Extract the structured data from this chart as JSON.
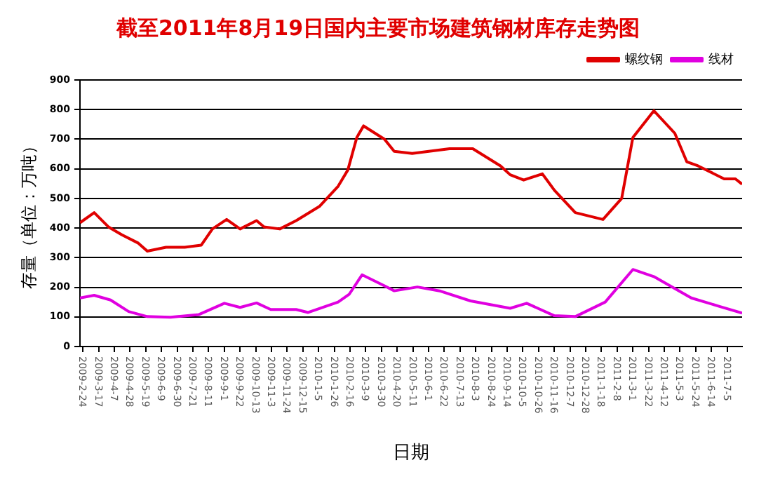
{
  "chart_data": {
    "type": "line",
    "title": "截至2011年8月19日国内主要市场建筑钢材库存走势图",
    "xlabel": "日期",
    "ylabel": "存量（单位：万吨）",
    "series": [
      {
        "name": "螺纹钢",
        "color": "#e00000",
        "x": [
          "2009-02-20",
          "2009-03-11",
          "2009-03-30",
          "2009-04-17",
          "2009-05-09",
          "2009-05-21",
          "2009-06-15",
          "2009-07-10",
          "2009-08-01",
          "2009-08-16",
          "2009-09-04",
          "2009-09-22",
          "2009-10-14",
          "2009-10-24",
          "2009-11-14",
          "2009-12-06",
          "2010-01-06",
          "2010-01-31",
          "2010-02-13",
          "2010-02-25",
          "2010-03-06",
          "2010-04-03",
          "2010-04-16",
          "2010-05-10",
          "2010-06-29",
          "2010-07-30",
          "2010-09-05",
          "2010-09-18",
          "2010-10-06",
          "2010-10-31",
          "2010-11-16",
          "2010-12-14",
          "2011-01-20",
          "2011-02-14",
          "2011-03-01",
          "2011-03-29",
          "2011-04-26",
          "2011-05-12",
          "2011-05-27",
          "2011-07-01",
          "2011-07-16",
          "2011-07-25"
        ],
        "values": [
          418,
          452,
          404,
          377,
          349,
          322,
          335,
          335,
          342,
          397,
          429,
          397,
          425,
          404,
          397,
          425,
          473,
          541,
          596,
          706,
          745,
          700,
          659,
          652,
          668,
          668,
          610,
          580,
          562,
          583,
          528,
          452,
          429,
          500,
          706,
          796,
          720,
          624,
          610,
          566,
          566,
          548
        ]
      },
      {
        "name": "线材",
        "color": "#e000e0",
        "x": [
          "2009-02-20",
          "2009-03-11",
          "2009-04-02",
          "2009-04-26",
          "2009-05-21",
          "2009-06-21",
          "2009-07-29",
          "2009-09-01",
          "2009-09-22",
          "2009-10-14",
          "2009-11-02",
          "2009-12-06",
          "2009-12-22",
          "2010-01-31",
          "2010-02-15",
          "2010-03-04",
          "2010-04-03",
          "2010-04-16",
          "2010-05-17",
          "2010-06-17",
          "2010-07-27",
          "2010-09-18",
          "2010-10-10",
          "2010-11-16",
          "2010-12-14",
          "2011-01-23",
          "2011-03-01",
          "2011-03-29",
          "2011-05-18",
          "2011-06-24",
          "2011-07-25"
        ],
        "values": [
          164,
          173,
          157,
          118,
          101,
          99,
          108,
          146,
          132,
          147,
          125,
          125,
          115,
          150,
          177,
          242,
          205,
          188,
          201,
          187,
          154,
          129,
          146,
          104,
          101,
          150,
          260,
          236,
          164,
          136,
          113
        ]
      }
    ],
    "xlim": [
      "2009-02-20",
      "2011-07-25"
    ],
    "xticks": [
      {
        "value": "2009-02-24",
        "label": "2009-2-24"
      },
      {
        "value": "2009-03-17",
        "label": "2009-3-17"
      },
      {
        "value": "2009-04-07",
        "label": "2009-4-7"
      },
      {
        "value": "2009-04-28",
        "label": "2009-4-28"
      },
      {
        "value": "2009-05-19",
        "label": "2009-5-19"
      },
      {
        "value": "2009-06-09",
        "label": "2009-6-9"
      },
      {
        "value": "2009-06-30",
        "label": "2009-6-30"
      },
      {
        "value": "2009-07-21",
        "label": "2009-7-21"
      },
      {
        "value": "2009-08-11",
        "label": "2009-8-11"
      },
      {
        "value": "2009-09-01",
        "label": "2009-9-1"
      },
      {
        "value": "2009-09-22",
        "label": "2009-9-22"
      },
      {
        "value": "2009-10-13",
        "label": "2009-10-13"
      },
      {
        "value": "2009-11-03",
        "label": "2009-11-3"
      },
      {
        "value": "2009-11-24",
        "label": "2009-11-24"
      },
      {
        "value": "2009-12-15",
        "label": "2009-12-15"
      },
      {
        "value": "2010-01-05",
        "label": "2010-1-5"
      },
      {
        "value": "2010-01-26",
        "label": "2010-1-26"
      },
      {
        "value": "2010-02-16",
        "label": "2010-2-16"
      },
      {
        "value": "2010-03-09",
        "label": "2010-3-9"
      },
      {
        "value": "2010-03-30",
        "label": "2010-3-30"
      },
      {
        "value": "2010-04-20",
        "label": "2010-4-20"
      },
      {
        "value": "2010-05-11",
        "label": "2010-5-11"
      },
      {
        "value": "2010-06-01",
        "label": "2010-6-1"
      },
      {
        "value": "2010-06-22",
        "label": "2010-6-22"
      },
      {
        "value": "2010-07-13",
        "label": "2010-7-13"
      },
      {
        "value": "2010-08-03",
        "label": "2010-8-3"
      },
      {
        "value": "2010-08-24",
        "label": "2010-8-24"
      },
      {
        "value": "2010-09-14",
        "label": "2010-9-14"
      },
      {
        "value": "2010-10-05",
        "label": "2010-10-5"
      },
      {
        "value": "2010-10-26",
        "label": "2010-10-26"
      },
      {
        "value": "2010-11-16",
        "label": "2010-11-16"
      },
      {
        "value": "2010-12-07",
        "label": "2010-12-7"
      },
      {
        "value": "2010-12-28",
        "label": "2010-12-28"
      },
      {
        "value": "2011-01-18",
        "label": "2011-1-18"
      },
      {
        "value": "2011-02-08",
        "label": "2011-2-8"
      },
      {
        "value": "2011-03-01",
        "label": "2011-3-1"
      },
      {
        "value": "2011-03-22",
        "label": "2011-3-22"
      },
      {
        "value": "2011-04-12",
        "label": "2011-4-12"
      },
      {
        "value": "2011-05-03",
        "label": "2011-5-3"
      },
      {
        "value": "2011-05-24",
        "label": "2011-5-24"
      },
      {
        "value": "2011-06-14",
        "label": "2011-6-14"
      },
      {
        "value": "2011-07-05",
        "label": "2011-7-5"
      }
    ],
    "ylim": [
      0,
      900
    ],
    "yticks": [
      0,
      100,
      200,
      300,
      400,
      500,
      600,
      700,
      800,
      900
    ],
    "grid": "y",
    "legend": "top right",
    "marker": "none",
    "line_style": "solid"
  }
}
